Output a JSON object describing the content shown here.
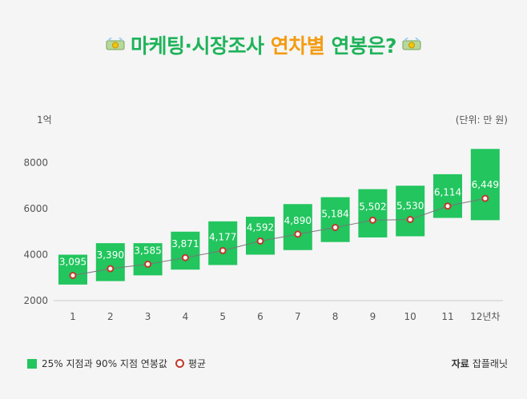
{
  "title": {
    "part1": "마케팅·시장조사",
    "part2": "연차별",
    "part3": "연봉은?",
    "icon_left": "money-bag-icon",
    "icon_right": "money-bag-icon"
  },
  "legend": {
    "range_label": "25% 지점과 90% 지점 연봉값",
    "avg_label": "평균"
  },
  "source": {
    "label": "자료",
    "name": "잡플래닛"
  },
  "colors": {
    "bar": "#22c55e",
    "title_green": "#1fb35a",
    "title_orange": "#f39c12",
    "marker": "#c0392b"
  },
  "chart_data": {
    "type": "bar",
    "title": "마케팅·시장조사 연차별 연봉은?",
    "unit_label": "(단위: 만 원)",
    "y_top_label": "1억",
    "ylim": [
      2000,
      10000
    ],
    "yticks": [
      2000,
      4000,
      6000,
      8000
    ],
    "categories": [
      "1",
      "2",
      "3",
      "4",
      "5",
      "6",
      "7",
      "8",
      "9",
      "10",
      "11",
      "12년차"
    ],
    "series": [
      {
        "name": "25% 지점",
        "values": [
          2700,
          2850,
          3100,
          3350,
          3550,
          4000,
          4200,
          4550,
          4750,
          4800,
          5600,
          5500
        ]
      },
      {
        "name": "90% 지점",
        "values": [
          4000,
          4500,
          4500,
          5000,
          5450,
          5650,
          6200,
          6500,
          6850,
          7000,
          7500,
          8600
        ]
      },
      {
        "name": "평균",
        "values": [
          3095,
          3390,
          3585,
          3871,
          4177,
          4592,
          4890,
          5184,
          5502,
          5530,
          6114,
          6449
        ]
      }
    ],
    "value_labels": [
      "3,095",
      "3,390",
      "3,585",
      "3,871",
      "4,177",
      "4,592",
      "4,890",
      "5,184",
      "5,502",
      "5,530",
      "6,114",
      "6,449"
    ]
  }
}
